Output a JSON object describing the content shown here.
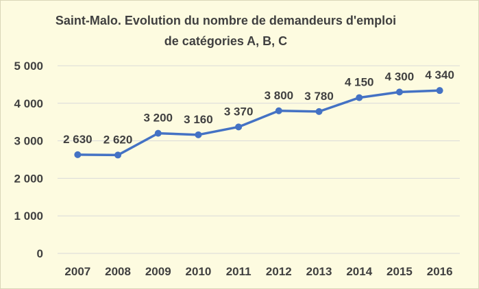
{
  "chart_data": {
    "type": "line",
    "title_line1": "Saint-Malo. Evolution du nombre de  demandeurs d'emploi",
    "title_line2": "de catégories A, B, C",
    "categories": [
      "2007",
      "2008",
      "2009",
      "2010",
      "2011",
      "2012",
      "2013",
      "2014",
      "2015",
      "2016"
    ],
    "values": [
      2630,
      2620,
      3200,
      3160,
      3370,
      3800,
      3780,
      4150,
      4300,
      4340
    ],
    "value_labels": [
      "2 630",
      "2 620",
      "3 200",
      "3 160",
      "3 370",
      "3 800",
      "3 780",
      "4 150",
      "4 300",
      "4 340"
    ],
    "y_ticks": [
      0,
      1000,
      2000,
      3000,
      4000,
      5000
    ],
    "y_tick_labels": [
      "0",
      "1 000",
      "2 000",
      "3 000",
      "4 000",
      "5 000"
    ],
    "ylim": [
      0,
      5000
    ],
    "grid": true,
    "legend": "none",
    "line_color": "#4472c4",
    "grid_color": "#d9d9d9"
  }
}
